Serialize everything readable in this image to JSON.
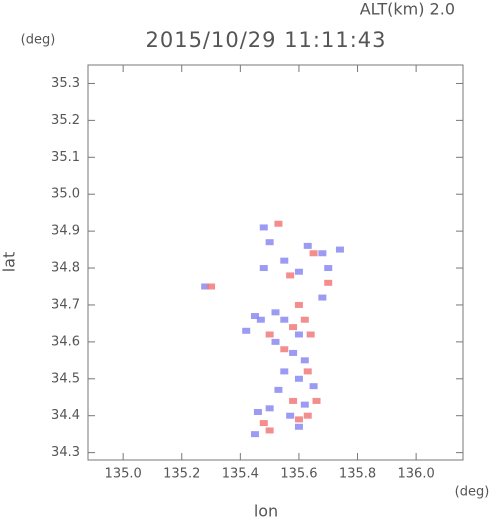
{
  "chart_data": {
    "type": "scatter",
    "title": "2015/10/29 11:11:43",
    "subtitle": "ALT(km) 2.0",
    "x_label": "lon",
    "y_label": "lat",
    "x_unit": "(deg)",
    "y_unit": "(deg)",
    "xlim": [
      134.88,
      136.16
    ],
    "ylim": [
      34.28,
      35.35
    ],
    "xticks": [
      {
        "value": 135,
        "label": "135.0"
      },
      135.2,
      135.4,
      135.6,
      135.8,
      {
        "value": 136,
        "label": "136.0"
      }
    ],
    "yticks": [
      34.3,
      34.4,
      34.5,
      34.6,
      34.7,
      34.8,
      34.9,
      {
        "value": 35,
        "label": "35.0"
      },
      35.1,
      35.2,
      35.3
    ],
    "grid": false,
    "series": [
      {
        "color": "#8a8af2",
        "x": [
          135.48,
          135.5,
          135.55,
          135.63,
          135.68,
          135.7,
          135.6,
          135.48,
          135.52,
          135.47,
          135.55,
          135.6,
          135.52,
          135.58,
          135.62,
          135.55,
          135.6,
          135.65,
          135.53,
          135.62,
          135.5,
          135.46,
          135.57,
          135.6,
          135.45,
          135.68,
          135.45,
          135.28,
          135.74,
          135.42
        ],
        "values": [
          34.91,
          34.87,
          34.82,
          34.86,
          34.84,
          34.8,
          34.79,
          34.8,
          34.68,
          34.66,
          34.66,
          34.62,
          34.6,
          34.57,
          34.55,
          34.52,
          34.5,
          34.48,
          34.47,
          34.43,
          34.42,
          34.41,
          34.4,
          34.37,
          34.35,
          34.72,
          34.67,
          34.75,
          34.85,
          34.63
        ]
      },
      {
        "color": "#f07a7a",
        "x": [
          135.62,
          135.64,
          135.58,
          135.6,
          135.55,
          135.63,
          135.66,
          135.58,
          135.63,
          135.6,
          135.5,
          135.48,
          135.7,
          135.57,
          135.53,
          135.3,
          135.65,
          135.5
        ],
        "values": [
          34.66,
          34.62,
          34.64,
          34.7,
          34.58,
          34.52,
          34.44,
          34.44,
          34.4,
          34.39,
          34.36,
          34.38,
          34.76,
          34.78,
          34.92,
          34.75,
          34.84,
          34.62
        ]
      }
    ]
  }
}
